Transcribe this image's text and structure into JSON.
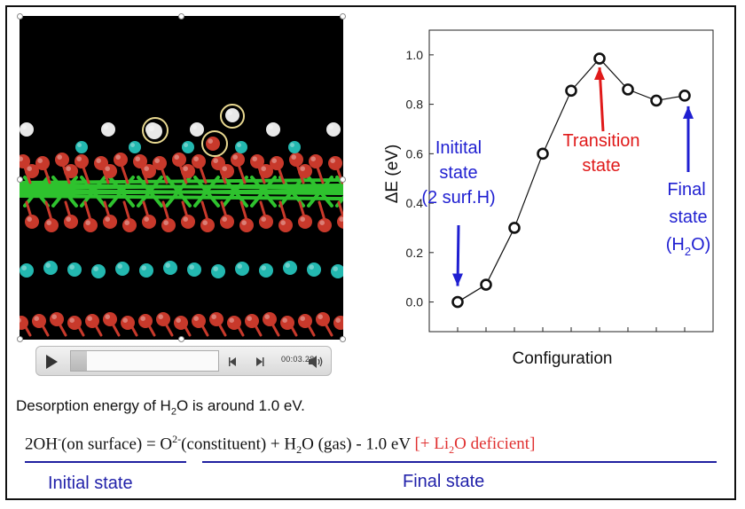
{
  "player": {
    "time": "00:03.28",
    "progress": 0.11,
    "icons": {
      "play": "play-icon",
      "back": "step-back-icon",
      "forward": "step-forward-icon",
      "volume": "volume-icon"
    }
  },
  "structure": {
    "colors": {
      "background": "#000000",
      "oxygen": "#c8392b",
      "metal": "#2ec22e",
      "lithium": "#23b8b0",
      "hydrogen": "#e8e8e8",
      "highlight": "#e8d890"
    }
  },
  "chart_data": {
    "type": "line",
    "x": [
      1,
      2,
      3,
      4,
      5,
      6,
      7,
      8,
      9
    ],
    "values": [
      0.0,
      0.07,
      0.3,
      0.6,
      0.855,
      0.985,
      0.86,
      0.815,
      0.835
    ],
    "xlabel": "Configuration",
    "ylabel": "ΔE (eV)",
    "ylim": [
      -0.12,
      1.1
    ],
    "yticks": [
      "0.0",
      "0.2",
      "0.4",
      "0.6",
      "0.8",
      "1.0"
    ],
    "grid": false,
    "annotations": {
      "initial": [
        "Initital",
        "state",
        "(2 surf.H)"
      ],
      "transition": [
        "Transition",
        "state"
      ],
      "final": [
        "Final",
        "state",
        "(H",
        "2",
        "O)"
      ]
    },
    "colors": {
      "initial": "#1f1fd1",
      "transition": "#e01a1a",
      "final": "#1f1fd1",
      "line": "#111111"
    }
  },
  "text": {
    "desc_pre": "Desorption energy of H",
    "desc_sub": "2",
    "desc_post": "O is around 1.0 eV.",
    "eq": {
      "p1": "2OH",
      "p1_sup": "-",
      "p2": "(on surface) = O",
      "p2_sup": "2-",
      "p3": "(constituent) + H",
      "p3_sub": "2",
      "p4": "O (gas) - 1.0 eV ",
      "red_pre": "[+ Li",
      "red_sub": "2",
      "red_post": "O deficient]"
    },
    "initial_state": "Initial state",
    "final_state": "Final state"
  }
}
